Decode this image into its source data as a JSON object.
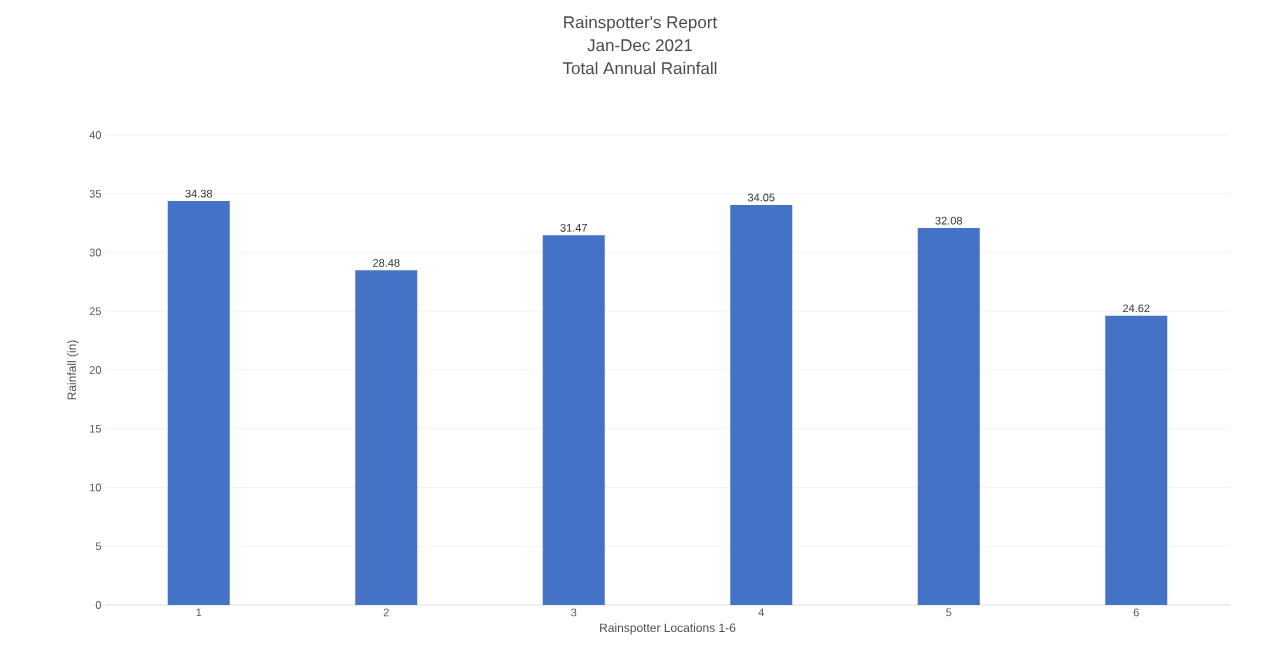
{
  "chart_data": {
    "type": "bar",
    "title": "Rainspotter's Report\nJan-Dec 2021\nTotal Annual Rainfall",
    "xlabel": "Rainspotter Locations 1-6",
    "ylabel": "Rainfall (in)",
    "categories": [
      "1",
      "2",
      "3",
      "4",
      "5",
      "6"
    ],
    "values": [
      34.38,
      28.48,
      31.47,
      34.05,
      32.08,
      24.62
    ],
    "color": "#4472c4",
    "data_labels": true,
    "grid": "y",
    "ylim": [
      0,
      40
    ],
    "yticks": [
      0,
      5,
      10,
      15,
      20,
      25,
      30,
      35,
      40
    ]
  }
}
